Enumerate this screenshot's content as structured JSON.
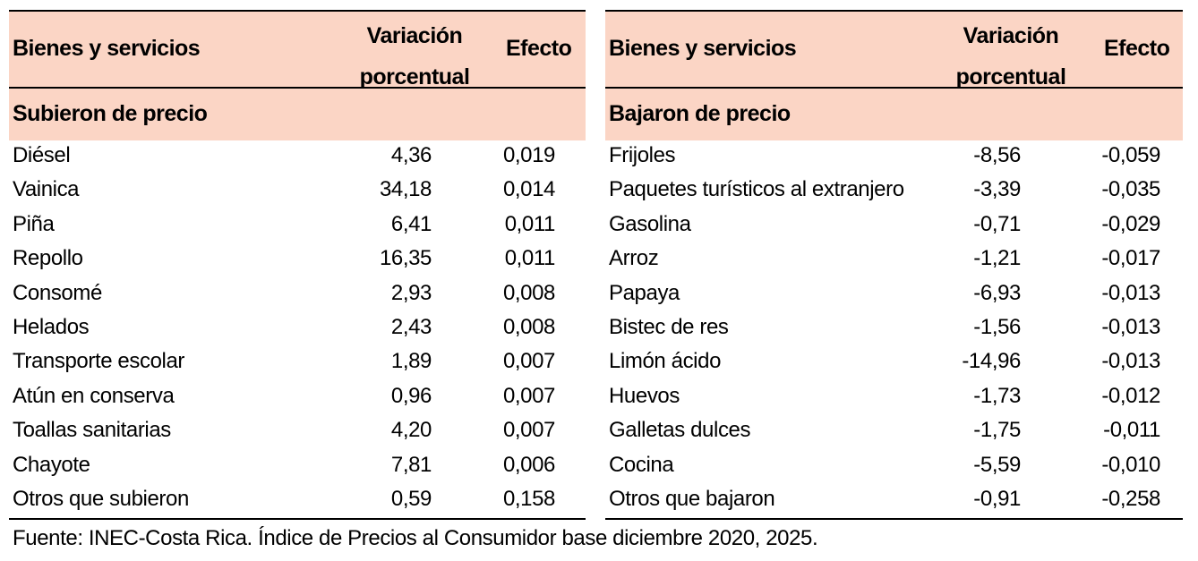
{
  "headers": {
    "col1": "Bienes y servicios",
    "col2_line1": "Variación",
    "col2_line2": "porcentual",
    "col3": "Efecto"
  },
  "left": {
    "section": "Subieron de precio",
    "rows": [
      {
        "name": "Diésel",
        "variacion": "4,36",
        "efecto": "0,019"
      },
      {
        "name": "Vainica",
        "variacion": "34,18",
        "efecto": "0,014"
      },
      {
        "name": "Piña",
        "variacion": "6,41",
        "efecto": "0,011"
      },
      {
        "name": "Repollo",
        "variacion": "16,35",
        "efecto": "0,011"
      },
      {
        "name": "Consomé",
        "variacion": "2,93",
        "efecto": "0,008"
      },
      {
        "name": "Helados",
        "variacion": "2,43",
        "efecto": "0,008"
      },
      {
        "name": "Transporte escolar",
        "variacion": "1,89",
        "efecto": "0,007"
      },
      {
        "name": "Atún en conserva",
        "variacion": "0,96",
        "efecto": "0,007"
      },
      {
        "name": "Toallas sanitarias",
        "variacion": "4,20",
        "efecto": "0,007"
      },
      {
        "name": "Chayote",
        "variacion": "7,81",
        "efecto": "0,006"
      },
      {
        "name": "Otros que subieron",
        "variacion": "0,59",
        "efecto": "0,158"
      }
    ]
  },
  "right": {
    "section": "Bajaron de precio",
    "rows": [
      {
        "name": "Frijoles",
        "variacion": "-8,56",
        "efecto": "-0,059"
      },
      {
        "name": "Paquetes turísticos al extranjero",
        "variacion": "-3,39",
        "efecto": "-0,035"
      },
      {
        "name": "Gasolina",
        "variacion": "-0,71",
        "efecto": "-0,029"
      },
      {
        "name": "Arroz",
        "variacion": "-1,21",
        "efecto": "-0,017"
      },
      {
        "name": "Papaya",
        "variacion": "-6,93",
        "efecto": "-0,013"
      },
      {
        "name": "Bistec de res",
        "variacion": "-1,56",
        "efecto": "-0,013"
      },
      {
        "name": "Limón ácido",
        "variacion": "-14,96",
        "efecto": "-0,013"
      },
      {
        "name": "Huevos",
        "variacion": "-1,73",
        "efecto": "-0,012"
      },
      {
        "name": "Galletas dulces",
        "variacion": "-1,75",
        "efecto": "-0,011"
      },
      {
        "name": "Cocina",
        "variacion": "-5,59",
        "efecto": "-0,010"
      },
      {
        "name": "Otros que bajaron",
        "variacion": "-0,91",
        "efecto": "-0,258"
      }
    ]
  },
  "footer": "Fuente: INEC-Costa Rica. Índice de Precios al Consumidor base diciembre 2020, 2025.",
  "colors": {
    "header_bg": "#fbd5c5"
  }
}
